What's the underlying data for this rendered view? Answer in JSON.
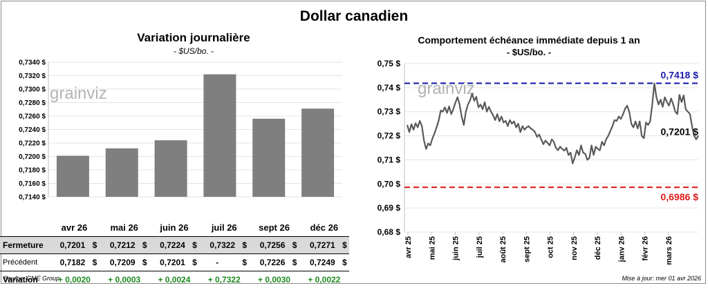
{
  "page": {
    "title": "Dollar canadien",
    "source": "Source: CME Group",
    "updated": "Mise à jour: mer 01 avr 2026"
  },
  "colors": {
    "bar": "#7f7f7f",
    "line": "#595959",
    "high": "#1c1cae",
    "low": "#e01a1a",
    "positive": "#1e8a1e",
    "table_shade": "#d9d9d9"
  },
  "watermark": "grainviz",
  "chart_data": [
    {
      "type": "bar",
      "title": "Variation journalière",
      "subtitle": "- $US/bo. -",
      "categories": [
        "avr 26",
        "mai 26",
        "juin 26",
        "juil 26",
        "sept 26",
        "déc 26"
      ],
      "values": [
        0.7201,
        0.7212,
        0.7224,
        0.7322,
        0.7256,
        0.7271
      ],
      "ylim": [
        0.714,
        0.734
      ],
      "yticks": [
        "0,7140 $",
        "0,7160 $",
        "0,7180 $",
        "0,7200 $",
        "0,7220 $",
        "0,7240 $",
        "0,7260 $",
        "0,7280 $",
        "0,7300 $",
        "0,7320 $",
        "0,7340 $"
      ],
      "grid": true,
      "table": {
        "rows": [
          {
            "label": "Fermeture",
            "values": [
              "0,7201",
              "0,7212",
              "0,7224",
              "0,7322",
              "0,7256",
              "0,7271"
            ],
            "currency": "$"
          },
          {
            "label": "Précédent",
            "values": [
              "0,7182",
              "0,7209",
              "0,7201",
              "-",
              "0,7226",
              "0,7249"
            ],
            "currency": "$"
          },
          {
            "label": "Variation",
            "values": [
              "+ 0,0020",
              "+ 0,0003",
              "+ 0,0024",
              "+ 0,7322",
              "+ 0,0030",
              "+ 0,0022"
            ]
          }
        ]
      }
    },
    {
      "type": "line",
      "title": "Comportement échéance immédiate depuis 1 an",
      "subtitle": "- $US/bo. -",
      "ylim": [
        0.68,
        0.75
      ],
      "yticks": [
        "0,68 $",
        "0,69 $",
        "0,70 $",
        "0,71 $",
        "0,72 $",
        "0,73 $",
        "0,74 $",
        "0,75 $"
      ],
      "xticks": [
        "avr 25",
        "mai 25",
        "juin 25",
        "juil 25",
        "août 25",
        "sept 25",
        "oct 25",
        "nov 25",
        "déc 25",
        "janv 26",
        "févr 26",
        "mars 26"
      ],
      "grid": true,
      "high": {
        "value": 0.7418,
        "label": "0,7418 $"
      },
      "low": {
        "value": 0.6986,
        "label": "0,6986 $"
      },
      "last": {
        "value": 0.7201,
        "label": "0,7201 $"
      },
      "series": [
        {
          "values": [
            0.7245,
            0.7215,
            0.7248,
            0.7225,
            0.7252,
            0.7235,
            0.7262,
            0.724,
            0.718,
            0.7145,
            0.7168,
            0.716,
            0.7188,
            0.721,
            0.7235,
            0.7262,
            0.7305,
            0.73,
            0.7318,
            0.7295,
            0.7322,
            0.729,
            0.731,
            0.7338,
            0.736,
            0.733,
            0.728,
            0.7245,
            0.73,
            0.733,
            0.7348,
            0.7375,
            0.7345,
            0.7362,
            0.7318,
            0.733,
            0.731,
            0.734,
            0.73,
            0.732,
            0.73,
            0.7285,
            0.7265,
            0.729,
            0.726,
            0.728,
            0.7255,
            0.7262,
            0.724,
            0.7265,
            0.725,
            0.726,
            0.7235,
            0.725,
            0.7215,
            0.724,
            0.7225,
            0.7235,
            0.724,
            0.723,
            0.7225,
            0.7215,
            0.7195,
            0.7205,
            0.7185,
            0.7165,
            0.718,
            0.717,
            0.716,
            0.7185,
            0.7175,
            0.715,
            0.714,
            0.7155,
            0.7145,
            0.7138,
            0.715,
            0.712,
            0.713,
            0.7085,
            0.711,
            0.714,
            0.712,
            0.716,
            0.713,
            0.7125,
            0.71,
            0.7108,
            0.716,
            0.712,
            0.7155,
            0.7145,
            0.714,
            0.7175,
            0.716,
            0.7185,
            0.72,
            0.722,
            0.724,
            0.7265,
            0.7262,
            0.728,
            0.727,
            0.7288,
            0.7312,
            0.7325,
            0.73,
            0.725,
            0.7235,
            0.726,
            0.723,
            0.726,
            0.72,
            0.719,
            0.7255,
            0.7245,
            0.726,
            0.733,
            0.7418,
            0.736,
            0.733,
            0.735,
            0.732,
            0.736,
            0.734,
            0.7325,
            0.7355,
            0.733,
            0.73,
            0.729,
            0.737,
            0.734,
            0.7368,
            0.731,
            0.73,
            0.729,
            0.724,
            0.72,
            0.7185,
            0.7201
          ]
        }
      ]
    }
  ]
}
